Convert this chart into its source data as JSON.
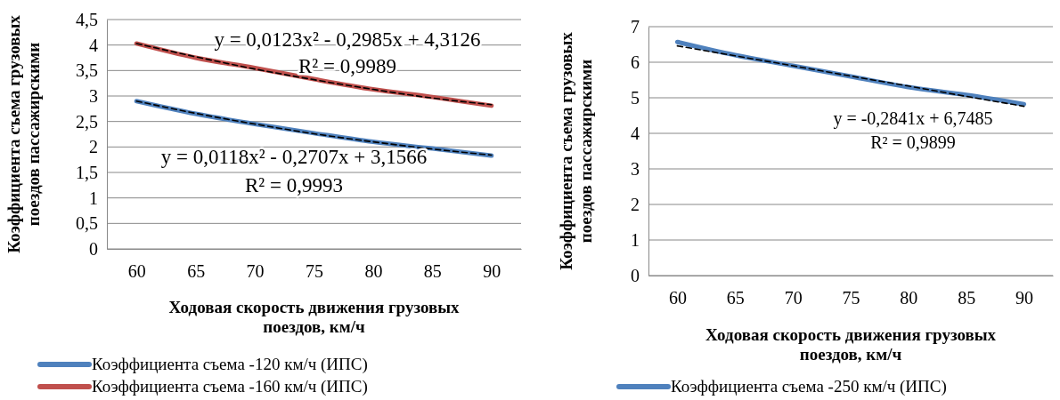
{
  "chart_data": [
    {
      "type": "line",
      "categories": [
        "60",
        "65",
        "70",
        "75",
        "80",
        "85",
        "90"
      ],
      "xlabel": "Ходовая скорость движения грузовых поездов, км/ч",
      "ylabel": "Коэффициента съема грузовых поездов пассажирскими",
      "ylim": [
        0,
        4.5
      ],
      "yticks": [
        0,
        {
          "value": 0.5,
          "label": "0,5"
        },
        1,
        {
          "value": 1.5,
          "label": "1,5"
        },
        2,
        {
          "value": 2.5,
          "label": "2,5"
        },
        3,
        {
          "value": 3.5,
          "label": "3,5"
        },
        4,
        {
          "value": 4.5,
          "label": "4,5"
        }
      ],
      "grid": "y",
      "legend": "bottom",
      "series": [
        {
          "name": "Коэффициента съема -120 км/ч (ИПС)",
          "color": "#4f81bd",
          "line_style": "solid",
          "values": [
            2.9,
            2.65,
            2.45,
            2.27,
            2.1,
            1.97,
            1.83
          ]
        },
        {
          "name": "Коэффициента съема -160 км/ч (ИПС)",
          "color": "#c0504d",
          "line_style": "solid",
          "values": [
            4.03,
            3.75,
            3.55,
            3.33,
            3.13,
            2.98,
            2.81
          ]
        },
        {
          "type": "line",
          "color": "#000000",
          "line_style": "dashed",
          "values": [
            2.9,
            2.66,
            2.45,
            2.26,
            2.1,
            1.96,
            1.84
          ]
        },
        {
          "type": "line",
          "color": "#000000",
          "line_style": "dashed",
          "values": [
            4.03,
            3.77,
            3.53,
            3.32,
            3.13,
            2.96,
            2.83
          ]
        }
      ],
      "annotations": [
        "y = 0,0123x² - 0,2985x + 4,3126",
        "R² = 0,9989",
        "y = 0,0118x² - 0,2707x + 3,1566",
        "R² = 0,9993"
      ]
    },
    {
      "type": "line",
      "categories": [
        "60",
        "65",
        "70",
        "75",
        "80",
        "85",
        "90"
      ],
      "xlabel": "Ходовая скорость движения грузовых поездов, км/ч",
      "ylabel": "Коэффициента съема грузовых поездов пассажирскими",
      "ylim": [
        0,
        7
      ],
      "yticks": [
        0,
        1,
        2,
        3,
        4,
        5,
        6,
        7
      ],
      "grid": "y",
      "legend": "bottom",
      "series": [
        {
          "name": "Коэффициента съема -250 км/ч (ИПС)",
          "color": "#4f81bd",
          "line_style": "solid",
          "values": [
            6.57,
            6.2,
            5.9,
            5.6,
            5.3,
            5.08,
            4.82
          ]
        },
        {
          "type": "line",
          "color": "#000000",
          "line_style": "dashed",
          "values": [
            6.46,
            6.18,
            5.9,
            5.61,
            5.33,
            5.04,
            4.76
          ]
        }
      ],
      "annotations": [
        "y = -0,2841x + 6,7485",
        "R² = 0,9899"
      ]
    }
  ]
}
